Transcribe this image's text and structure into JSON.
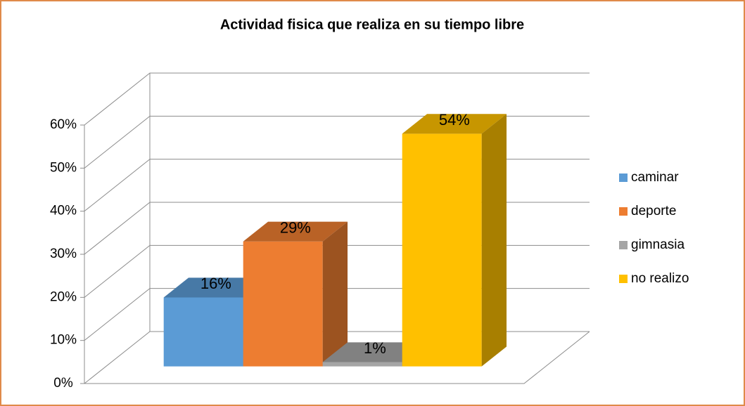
{
  "chart_data": {
    "type": "bar3d",
    "title": "Actividad fisica que realiza en su tiempo libre",
    "series": [
      {
        "name": "caminar",
        "color": "#5b9bd5",
        "values": [
          16
        ],
        "value_labels": [
          "16%"
        ]
      },
      {
        "name": "deporte",
        "color": "#ed7d31",
        "values": [
          29
        ],
        "value_labels": [
          "29%"
        ]
      },
      {
        "name": "gimnasia",
        "color": "#a5a5a5",
        "values": [
          1
        ],
        "value_labels": [
          "1%"
        ]
      },
      {
        "name": "no realizo",
        "color": "#ffc000",
        "values": [
          54
        ],
        "value_labels": [
          "54%"
        ]
      }
    ],
    "ylim": [
      0,
      60
    ],
    "yticks": [
      {
        "value": 0,
        "label": "0%"
      },
      {
        "value": 10,
        "label": "10%"
      },
      {
        "value": 20,
        "label": "20%"
      },
      {
        "value": 30,
        "label": "30%"
      },
      {
        "value": 40,
        "label": "40%"
      },
      {
        "value": 50,
        "label": "50%"
      },
      {
        "value": 60,
        "label": "60%"
      }
    ],
    "grid": true,
    "legend": "right"
  }
}
